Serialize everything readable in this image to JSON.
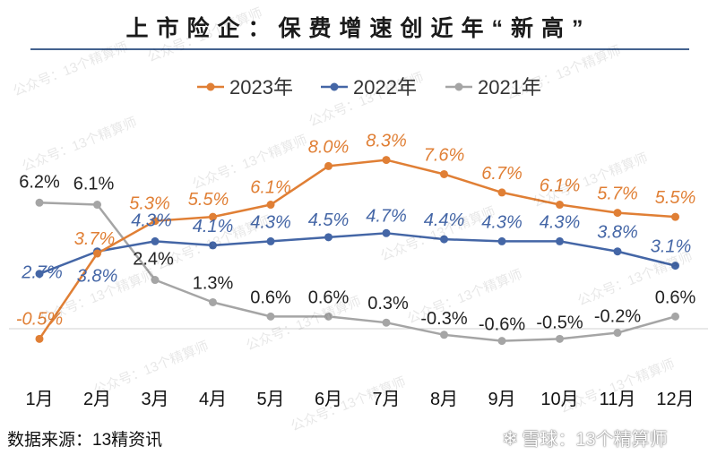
{
  "title": "上市险企：保费增速创近年“新高”",
  "source": "数据来源：13精资讯",
  "brand": {
    "logo": "❄",
    "text": "雪球：13个精算师"
  },
  "watermark": "公众号：13个精算师",
  "colors": {
    "2023": "#e07f35",
    "2022": "#4466a6",
    "2021": "#a5a5a5",
    "title_rule": "#44628f"
  },
  "chart_data": {
    "type": "line",
    "categories": [
      "1月",
      "2月",
      "3月",
      "4月",
      "5月",
      "6月",
      "7月",
      "8月",
      "9月",
      "10月",
      "11月",
      "12月"
    ],
    "series": [
      {
        "name": "2023年",
        "values": [
          -0.5,
          3.7,
          5.3,
          5.5,
          6.1,
          8.0,
          8.3,
          7.6,
          6.7,
          6.1,
          5.7,
          5.5
        ],
        "labels": [
          "-0.5%",
          "3.7%",
          "5.3%",
          "5.5%",
          "6.1%",
          "8.0%",
          "8.3%",
          "7.6%",
          "6.7%",
          "6.1%",
          "5.7%",
          "5.5%"
        ]
      },
      {
        "name": "2022年",
        "values": [
          2.7,
          3.8,
          4.3,
          4.1,
          4.3,
          4.5,
          4.7,
          4.4,
          4.3,
          4.3,
          3.8,
          3.1
        ],
        "labels": [
          "2.7%",
          "3.8%",
          "4.3%",
          "4.1%",
          "4.3%",
          "4.5%",
          "4.7%",
          "4.4%",
          "4.3%",
          "4.3%",
          "3.8%",
          "3.1%"
        ]
      },
      {
        "name": "2021年",
        "values": [
          6.2,
          6.1,
          2.4,
          1.3,
          0.6,
          0.6,
          0.3,
          -0.3,
          -0.6,
          -0.5,
          -0.2,
          0.6
        ],
        "labels": [
          "6.2%",
          "6.1%",
          "2.4%",
          "1.3%",
          "0.6%",
          "0.6%",
          "0.3%",
          "-0.3%",
          "-0.6%",
          "-0.5%",
          "-0.2%",
          "0.6%"
        ]
      }
    ],
    "legend": "top",
    "grid": false
  }
}
